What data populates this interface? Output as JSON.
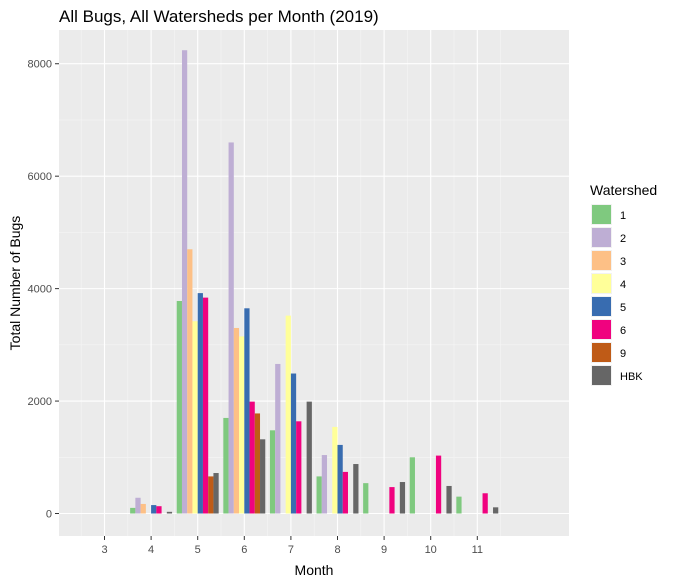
{
  "chart_data": {
    "type": "bar",
    "title": "All Bugs, All Watersheds per Month (2019)",
    "xlabel": "Month",
    "ylabel": "Total Number of Bugs",
    "categories": [
      "3",
      "4",
      "5",
      "6",
      "7",
      "8",
      "9",
      "10",
      "11"
    ],
    "yticks": [
      0,
      2000,
      4000,
      6000,
      8000
    ],
    "ylim": [
      -400,
      8600
    ],
    "grid": true,
    "legend": {
      "title": "Watershed",
      "position": "right"
    },
    "series": [
      {
        "name": "1",
        "color": "#7fc97f",
        "values": [
          null,
          100,
          3780,
          1700,
          1480,
          660,
          540,
          1000,
          300
        ]
      },
      {
        "name": "2",
        "color": "#beaed4",
        "values": [
          null,
          280,
          8240,
          6600,
          2660,
          1040,
          null,
          null,
          null
        ]
      },
      {
        "name": "3",
        "color": "#fdc086",
        "values": [
          null,
          170,
          4700,
          3300,
          null,
          null,
          null,
          null,
          null
        ]
      },
      {
        "name": "4",
        "color": "#ffff99",
        "values": [
          null,
          null,
          3420,
          3150,
          3520,
          1540,
          null,
          null,
          null
        ]
      },
      {
        "name": "5",
        "color": "#386cb0",
        "values": [
          null,
          150,
          3920,
          3650,
          2490,
          1220,
          null,
          null,
          null
        ]
      },
      {
        "name": "6",
        "color": "#f0027f",
        "values": [
          null,
          130,
          3840,
          1990,
          1640,
          740,
          470,
          1030,
          360
        ]
      },
      {
        "name": "9",
        "color": "#bf5b17",
        "values": [
          null,
          null,
          660,
          1780,
          null,
          null,
          null,
          null,
          null
        ]
      },
      {
        "name": "HBK",
        "color": "#666666",
        "values": [
          null,
          30,
          720,
          1320,
          1990,
          880,
          560,
          490,
          110
        ]
      }
    ]
  }
}
